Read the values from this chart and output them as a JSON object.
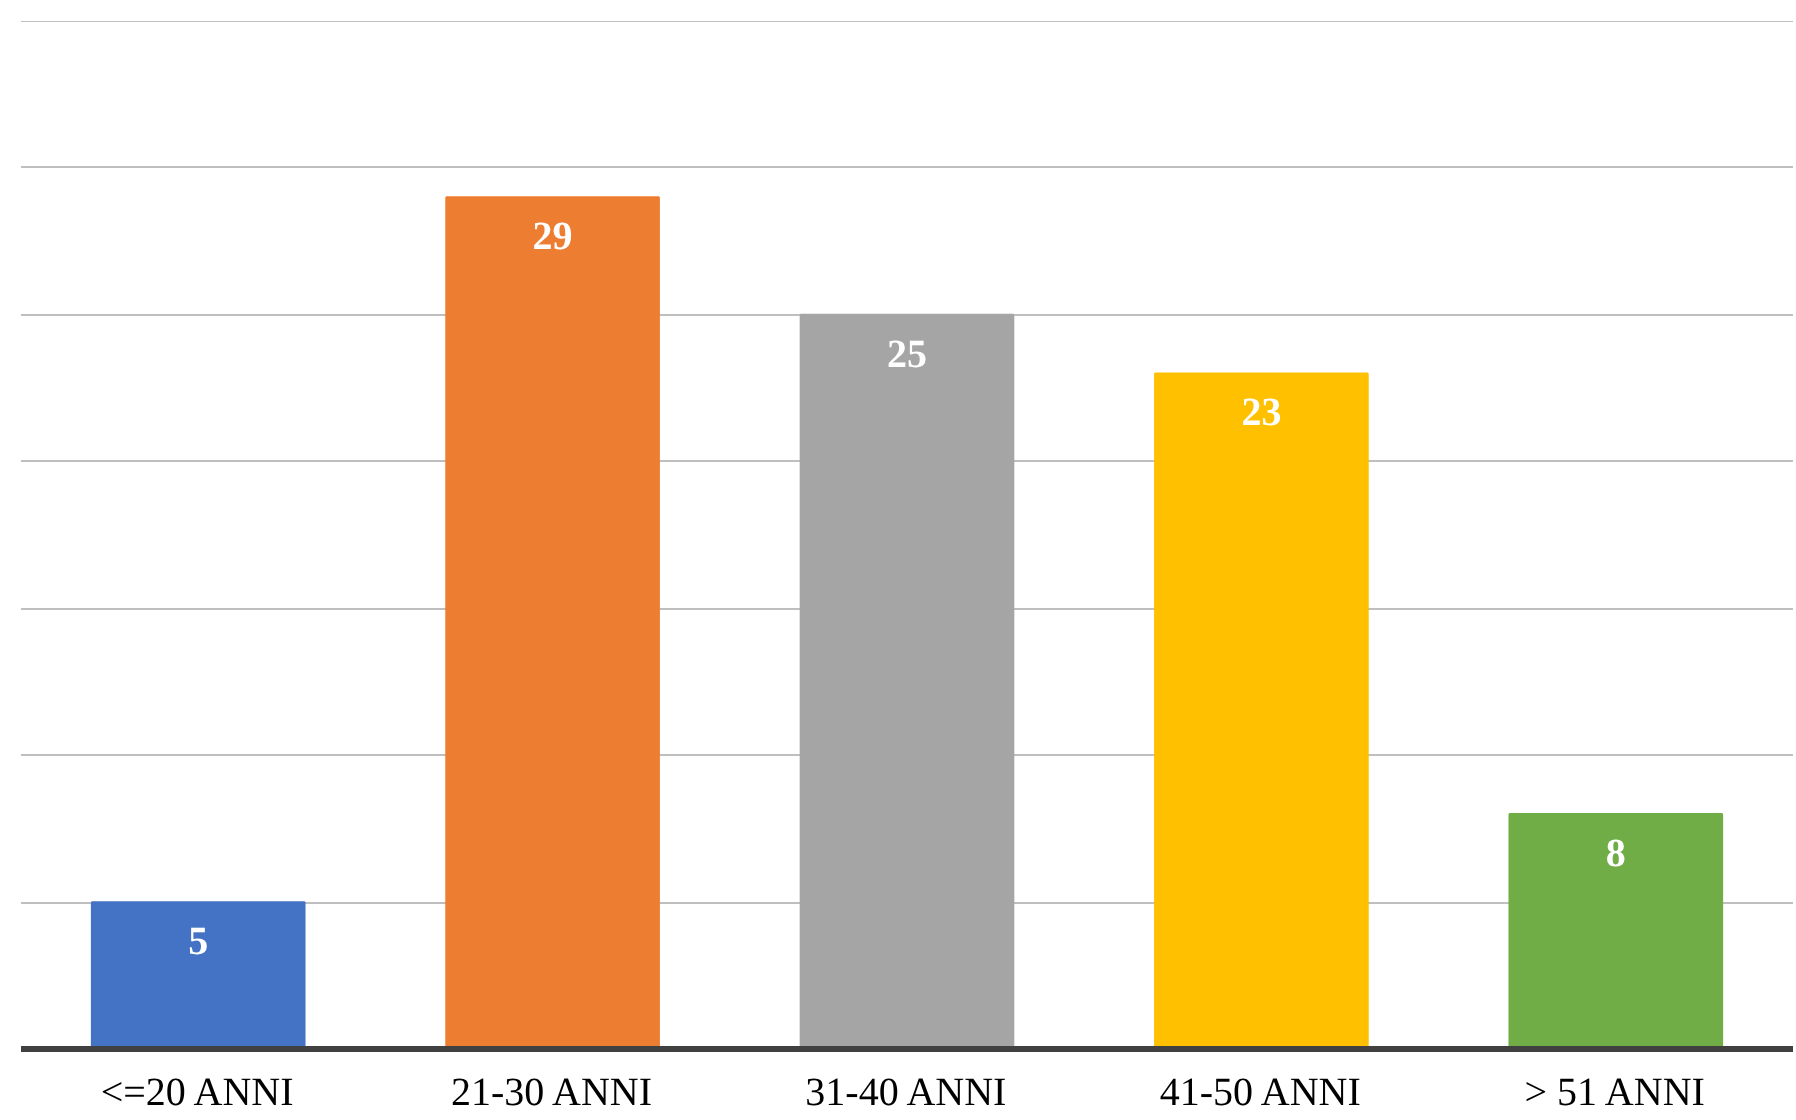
{
  "chart_data": {
    "type": "bar",
    "categories": [
      "<=20 ANNI",
      "21-30 ANNI",
      "31-40 ANNI",
      "41-50 ANNI",
      "> 51 ANNI"
    ],
    "values": [
      5,
      29,
      25,
      23,
      8
    ],
    "colors": [
      "#4472c4",
      "#ed7d31",
      "#a5a5a5",
      "#ffc000",
      "#70ad47"
    ],
    "ylim": [
      0,
      35
    ],
    "yticks": [
      {
        "value": 0,
        "label": null
      },
      {
        "value": 5,
        "label": null
      },
      {
        "value": 10,
        "label": null
      },
      {
        "value": 15,
        "label": null
      },
      {
        "value": 20,
        "label": null
      },
      {
        "value": 25,
        "label": null
      },
      {
        "value": 30,
        "label": null
      },
      {
        "value": 35,
        "label": null
      }
    ],
    "grid": "y",
    "tick_labels": "x",
    "data_labels": true
  }
}
